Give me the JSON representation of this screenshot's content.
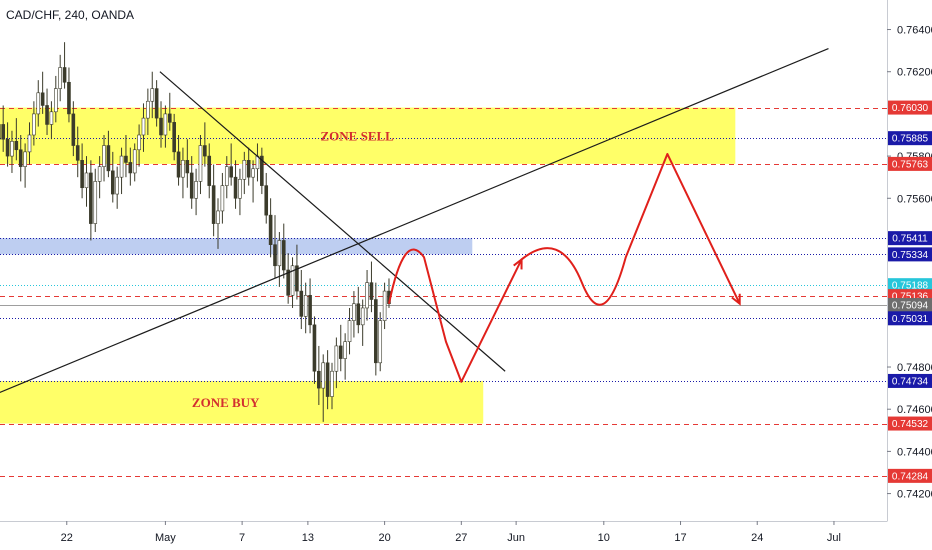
{
  "chart_data": {
    "type": "candlestick",
    "title": "CAD/CHF, 240, OANDA",
    "ylim": [
      0.7407,
      0.7654
    ],
    "y_ticks": [
      "0.76400",
      "0.76200",
      "0.75800",
      "0.75600",
      "0.74800",
      "0.74600",
      "0.74400",
      "0.74200"
    ],
    "x_ticks": [
      {
        "label": "22",
        "day": 21
      },
      {
        "label": "May",
        "day": 30
      },
      {
        "label": "7",
        "day": 37
      },
      {
        "label": "13",
        "day": 43
      },
      {
        "label": "20",
        "day": 50
      },
      {
        "label": "27",
        "day": 57
      },
      {
        "label": "Jun",
        "day": 62
      },
      {
        "label": "10",
        "day": 70
      },
      {
        "label": "17",
        "day": 77
      },
      {
        "label": "24",
        "day": 84
      },
      {
        "label": "Jul",
        "day": 91
      }
    ],
    "price_levels": [
      {
        "value": "0.76030",
        "price": 0.7603,
        "style": "dashed",
        "color": "#e53935",
        "badge": "#e53935"
      },
      {
        "value": "0.75885",
        "price": 0.75885,
        "style": "dotted",
        "color": "#1a1aa8",
        "badge": "#1a1aa8"
      },
      {
        "value": "0.75763",
        "price": 0.75763,
        "style": "dashed",
        "color": "#e53935",
        "badge": "#e53935"
      },
      {
        "value": "0.75411",
        "price": 0.75411,
        "style": "dotted",
        "color": "#1a1aa8",
        "badge": "#1a1aa8"
      },
      {
        "value": "0.75334",
        "price": 0.75334,
        "style": "dotted",
        "color": "#1a1aa8",
        "badge": "#1a1aa8"
      },
      {
        "value": "0.75188",
        "price": 0.75188,
        "style": "dotted",
        "color": "#26c6da",
        "badge": "#26c6da"
      },
      {
        "value": "0.75136",
        "price": 0.75136,
        "style": "dashed",
        "color": "#e53935",
        "badge": "#e53935"
      },
      {
        "value": "0.75094",
        "price": 0.75094,
        "style": "solid",
        "color": "#9e9e9e",
        "badge": "#6d6d6d"
      },
      {
        "value": "0.75031",
        "price": 0.75031,
        "style": "dotted",
        "color": "#1a1aa8",
        "badge": "#1a1aa8"
      },
      {
        "value": "0.74734",
        "price": 0.74734,
        "style": "dotted",
        "color": "#1a1aa8",
        "badge": "#1a1aa8"
      },
      {
        "value": "0.74532",
        "price": 0.74532,
        "style": "dashed",
        "color": "#e53935",
        "badge": "#e53935"
      },
      {
        "value": "0.74284",
        "price": 0.74284,
        "style": "dashed",
        "color": "#e53935",
        "badge": "#e53935"
      }
    ],
    "zones": [
      {
        "label": "ZONE SELL",
        "from_day": 13,
        "to_day": 82,
        "top": 0.7603,
        "bottom": 0.75763,
        "color": "#ffff4d"
      },
      {
        "label": "ZONE BUY",
        "from_day": 12,
        "to_day": 59,
        "top": 0.74734,
        "bottom": 0.74532,
        "color": "#ffff4d"
      },
      {
        "label": "",
        "from_day": 13,
        "to_day": 58,
        "top": 0.75411,
        "bottom": 0.75334,
        "color": "#b3c6ef"
      }
    ],
    "candles": [
      [
        12,
        0.7541,
        0.7572,
        0.7533,
        0.7566
      ],
      [
        12.4,
        0.7566,
        0.7592,
        0.7558,
        0.7584
      ],
      [
        12.8,
        0.7584,
        0.759,
        0.7568,
        0.7572
      ],
      [
        13.2,
        0.7572,
        0.759,
        0.756,
        0.7582
      ],
      [
        13.6,
        0.7582,
        0.7594,
        0.757,
        0.7578
      ],
      [
        14,
        0.7578,
        0.7585,
        0.7565,
        0.757
      ],
      [
        14.4,
        0.757,
        0.7592,
        0.7566,
        0.7588
      ],
      [
        14.8,
        0.7588,
        0.7602,
        0.758,
        0.7595
      ],
      [
        15.2,
        0.7595,
        0.7604,
        0.7582,
        0.7588
      ],
      [
        15.6,
        0.7588,
        0.7596,
        0.7575,
        0.758
      ],
      [
        16,
        0.758,
        0.7592,
        0.7572,
        0.7587
      ],
      [
        16.4,
        0.7587,
        0.7598,
        0.7578,
        0.7583
      ],
      [
        16.8,
        0.7583,
        0.759,
        0.7568,
        0.7575
      ],
      [
        17.2,
        0.7575,
        0.7586,
        0.7565,
        0.7582
      ],
      [
        17.6,
        0.7582,
        0.7596,
        0.7576,
        0.759
      ],
      [
        18,
        0.759,
        0.7606,
        0.7585,
        0.76
      ],
      [
        18.4,
        0.76,
        0.7616,
        0.7594,
        0.761
      ],
      [
        18.8,
        0.761,
        0.762,
        0.76,
        0.7604
      ],
      [
        19.2,
        0.7604,
        0.7612,
        0.759,
        0.7595
      ],
      [
        19.6,
        0.7595,
        0.7606,
        0.7588,
        0.7601
      ],
      [
        20,
        0.7601,
        0.7618,
        0.7596,
        0.7612
      ],
      [
        20.4,
        0.7612,
        0.7628,
        0.7606,
        0.7622
      ],
      [
        20.8,
        0.7622,
        0.7634,
        0.7612,
        0.7615
      ],
      [
        21.2,
        0.7615,
        0.7622,
        0.7596,
        0.76
      ],
      [
        21.6,
        0.76,
        0.7606,
        0.758,
        0.7585
      ],
      [
        22,
        0.7585,
        0.7594,
        0.757,
        0.7578
      ],
      [
        22.4,
        0.7578,
        0.7586,
        0.756,
        0.7565
      ],
      [
        22.8,
        0.7565,
        0.758,
        0.7556,
        0.7572
      ],
      [
        23.2,
        0.7572,
        0.7578,
        0.754,
        0.7548
      ],
      [
        23.6,
        0.7548,
        0.7574,
        0.7544,
        0.7568
      ],
      [
        24,
        0.7568,
        0.758,
        0.756,
        0.7575
      ],
      [
        24.4,
        0.7575,
        0.759,
        0.7568,
        0.7585
      ],
      [
        24.8,
        0.7585,
        0.7592,
        0.757,
        0.7573
      ],
      [
        25.2,
        0.7573,
        0.7582,
        0.7558,
        0.7562
      ],
      [
        25.6,
        0.7562,
        0.7575,
        0.7555,
        0.757
      ],
      [
        26,
        0.757,
        0.7584,
        0.7562,
        0.758
      ],
      [
        26.4,
        0.758,
        0.759,
        0.757,
        0.7577
      ],
      [
        26.8,
        0.7577,
        0.7584,
        0.7566,
        0.7572
      ],
      [
        27.2,
        0.7572,
        0.7586,
        0.7568,
        0.7583
      ],
      [
        27.6,
        0.7583,
        0.7595,
        0.7575,
        0.759
      ],
      [
        28,
        0.759,
        0.7605,
        0.7582,
        0.7598
      ],
      [
        28.4,
        0.7598,
        0.7612,
        0.759,
        0.7606
      ],
      [
        28.8,
        0.7606,
        0.762,
        0.7598,
        0.7612
      ],
      [
        29.2,
        0.7612,
        0.7616,
        0.7594,
        0.7598
      ],
      [
        29.6,
        0.7598,
        0.7606,
        0.7584,
        0.759
      ],
      [
        30,
        0.759,
        0.7604,
        0.7584,
        0.76
      ],
      [
        30.4,
        0.76,
        0.761,
        0.7592,
        0.7596
      ],
      [
        30.8,
        0.7596,
        0.76,
        0.7578,
        0.7582
      ],
      [
        31.2,
        0.7582,
        0.759,
        0.7566,
        0.757
      ],
      [
        31.6,
        0.757,
        0.7584,
        0.756,
        0.7578
      ],
      [
        32,
        0.7578,
        0.7588,
        0.7565,
        0.7572
      ],
      [
        32.4,
        0.7572,
        0.758,
        0.7555,
        0.756
      ],
      [
        32.8,
        0.756,
        0.7574,
        0.7552,
        0.7568
      ],
      [
        33.2,
        0.7568,
        0.759,
        0.7562,
        0.7585
      ],
      [
        33.6,
        0.7585,
        0.7596,
        0.7575,
        0.758
      ],
      [
        34,
        0.758,
        0.7586,
        0.756,
        0.7566
      ],
      [
        34.4,
        0.7566,
        0.7576,
        0.7542,
        0.7548
      ],
      [
        34.8,
        0.7548,
        0.756,
        0.7536,
        0.7554
      ],
      [
        35.2,
        0.7554,
        0.7572,
        0.7548,
        0.7566
      ],
      [
        35.6,
        0.7566,
        0.758,
        0.756,
        0.7575
      ],
      [
        36,
        0.7575,
        0.7586,
        0.7566,
        0.757
      ],
      [
        36.4,
        0.757,
        0.7578,
        0.7555,
        0.756
      ],
      [
        36.8,
        0.756,
        0.7574,
        0.7552,
        0.7569
      ],
      [
        37.2,
        0.7569,
        0.7582,
        0.7562,
        0.7578
      ],
      [
        37.6,
        0.7578,
        0.7584,
        0.7566,
        0.757
      ],
      [
        38,
        0.757,
        0.7578,
        0.7558,
        0.7574
      ],
      [
        38.4,
        0.7574,
        0.7586,
        0.7568,
        0.758
      ],
      [
        38.8,
        0.758,
        0.7584,
        0.7562,
        0.7566
      ],
      [
        39.2,
        0.7566,
        0.7572,
        0.7548,
        0.7552
      ],
      [
        39.6,
        0.7552,
        0.756,
        0.7532,
        0.7538
      ],
      [
        40,
        0.7538,
        0.7552,
        0.7522,
        0.7528
      ],
      [
        40.4,
        0.7528,
        0.7544,
        0.7518,
        0.754
      ],
      [
        40.8,
        0.754,
        0.7548,
        0.7522,
        0.7526
      ],
      [
        41.2,
        0.7526,
        0.7534,
        0.751,
        0.7514
      ],
      [
        41.6,
        0.7514,
        0.7532,
        0.7508,
        0.7528
      ],
      [
        42,
        0.7528,
        0.7538,
        0.7512,
        0.7516
      ],
      [
        42.4,
        0.7516,
        0.7526,
        0.7498,
        0.7504
      ],
      [
        42.8,
        0.7504,
        0.752,
        0.7496,
        0.7514
      ],
      [
        43.2,
        0.7514,
        0.7522,
        0.7496,
        0.75
      ],
      [
        43.6,
        0.75,
        0.7504,
        0.7472,
        0.7478
      ],
      [
        44,
        0.7478,
        0.749,
        0.7462,
        0.747
      ],
      [
        44.4,
        0.747,
        0.7486,
        0.7454,
        0.7482
      ],
      [
        44.8,
        0.7482,
        0.7488,
        0.746,
        0.7466
      ],
      [
        45.2,
        0.7466,
        0.7482,
        0.746,
        0.7478
      ],
      [
        45.6,
        0.7478,
        0.7494,
        0.747,
        0.749
      ],
      [
        46,
        0.749,
        0.75,
        0.7478,
        0.7484
      ],
      [
        46.4,
        0.7484,
        0.7496,
        0.7474,
        0.7492
      ],
      [
        46.8,
        0.7492,
        0.7508,
        0.7486,
        0.7502
      ],
      [
        47.2,
        0.7502,
        0.7516,
        0.7494,
        0.751
      ],
      [
        47.6,
        0.751,
        0.7518,
        0.7496,
        0.75
      ],
      [
        48,
        0.75,
        0.7512,
        0.749,
        0.7508
      ],
      [
        48.4,
        0.7508,
        0.7526,
        0.7502,
        0.752
      ],
      [
        48.8,
        0.752,
        0.753,
        0.7506,
        0.7512
      ],
      [
        49.2,
        0.7512,
        0.752,
        0.7476,
        0.7482
      ],
      [
        49.6,
        0.7482,
        0.7506,
        0.7478,
        0.7502
      ],
      [
        50,
        0.7502,
        0.752,
        0.7498,
        0.7516
      ],
      [
        50.4,
        0.7516,
        0.7522,
        0.7508,
        0.751
      ]
    ],
    "trendlines": [
      {
        "from_day": 29.5,
        "from_price": 0.762,
        "to_day": 61,
        "to_price": 0.7478,
        "color": "#1c1c1c"
      },
      {
        "from_day": 7.5,
        "from_price": 0.7452,
        "to_day": 90.5,
        "to_price": 0.7631,
        "color": "#1c1c1c"
      }
    ],
    "projection": {
      "color": "#e0201b",
      "points": [
        [
          50.4,
          0.751
        ],
        [
          51.8,
          0.7536
        ],
        [
          53.6,
          0.7532
        ],
        [
          55.6,
          0.7492
        ],
        [
          57,
          0.7473
        ],
        [
          62.5,
          0.7531
        ],
        [
          66,
          0.7541
        ],
        [
          68,
          0.752
        ],
        [
          70,
          0.7506
        ],
        [
          72,
          0.7532
        ],
        [
          75.8,
          0.7581
        ],
        [
          82.4,
          0.751
        ]
      ],
      "arrows": [
        {
          "at": 4,
          "to": 5
        },
        {
          "at": 10,
          "to": 11
        }
      ]
    },
    "grid": false
  }
}
